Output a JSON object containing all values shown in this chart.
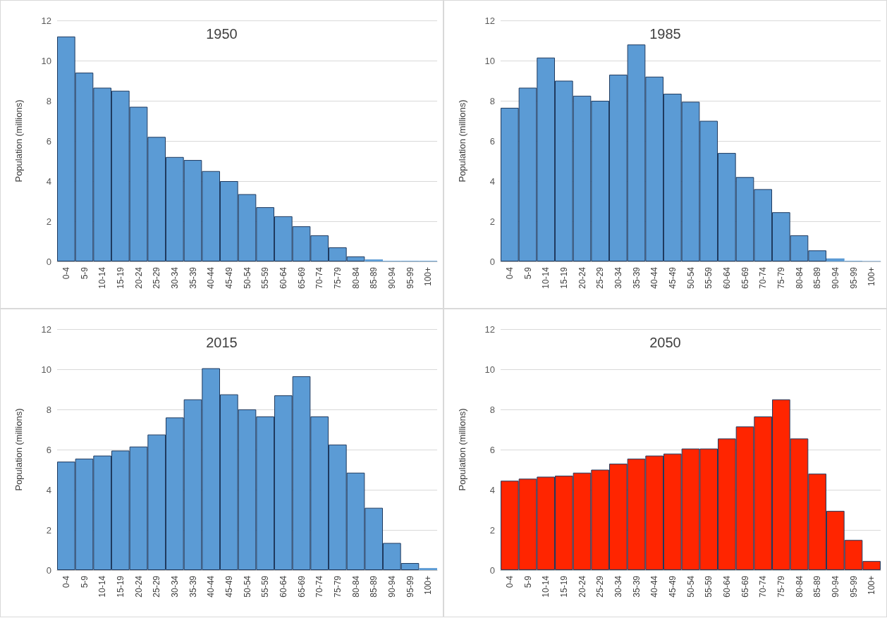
{
  "chart_data": [
    {
      "type": "bar",
      "title": "1950",
      "ylabel": "Population (millions)",
      "categories": [
        "0-4",
        "5-9",
        "10-14",
        "15-19",
        "20-24",
        "25-29",
        "30-34",
        "35-39",
        "40-44",
        "45-49",
        "50-54",
        "55-59",
        "60-64",
        "65-69",
        "70-74",
        "75-79",
        "80-84",
        "85-89",
        "90-94",
        "95-99",
        "100+"
      ],
      "values": [
        11.2,
        9.4,
        8.65,
        8.5,
        7.7,
        6.2,
        5.2,
        5.05,
        4.5,
        4.0,
        3.35,
        2.7,
        2.25,
        1.75,
        1.3,
        0.7,
        0.25,
        0.1,
        0.03,
        0.03,
        0.03
      ],
      "color": "#5b9bd5",
      "ylim": [
        0,
        12
      ],
      "yticks": [
        0,
        2,
        4,
        6,
        8,
        10,
        12
      ],
      "grid": "y"
    },
    {
      "type": "bar",
      "title": "1985",
      "ylabel": "Population (millions)",
      "categories": [
        "0-4",
        "5-9",
        "10-14",
        "15-19",
        "20-24",
        "25-29",
        "30-34",
        "35-39",
        "40-44",
        "45-49",
        "50-54",
        "55-59",
        "60-64",
        "65-69",
        "70-74",
        "75-79",
        "80-84",
        "85-89",
        "90-94",
        "95-99",
        "100+"
      ],
      "values": [
        7.65,
        8.65,
        10.15,
        9.0,
        8.25,
        8.0,
        9.3,
        10.8,
        9.2,
        8.35,
        7.95,
        7.0,
        5.4,
        4.2,
        3.6,
        2.45,
        1.3,
        0.55,
        0.15,
        0.03,
        0.02
      ],
      "color": "#5b9bd5",
      "ylim": [
        0,
        12
      ],
      "yticks": [
        0,
        2,
        4,
        6,
        8,
        10,
        12
      ],
      "grid": "y"
    },
    {
      "type": "bar",
      "title": "2015",
      "ylabel": "Population (millions)",
      "categories": [
        "0-4",
        "5-9",
        "10-14",
        "15-19",
        "20-24",
        "25-29",
        "30-34",
        "35-39",
        "40-44",
        "45-49",
        "50-54",
        "55-59",
        "60-64",
        "65-69",
        "70-74",
        "75-79",
        "80-84",
        "85-89",
        "90-94",
        "95-99",
        "100+"
      ],
      "values": [
        5.4,
        5.55,
        5.7,
        5.95,
        6.15,
        6.75,
        7.6,
        8.5,
        10.05,
        8.75,
        8.0,
        7.65,
        8.7,
        9.65,
        7.65,
        6.25,
        4.85,
        3.1,
        1.35,
        0.35,
        0.1
      ],
      "color": "#5b9bd5",
      "ylim": [
        0,
        12
      ],
      "yticks": [
        0,
        2,
        4,
        6,
        8,
        10,
        12
      ],
      "grid": "y"
    },
    {
      "type": "bar",
      "title": "2050",
      "ylabel": "Population (millions)",
      "categories": [
        "0-4",
        "5-9",
        "10-14",
        "15-19",
        "20-24",
        "25-29",
        "30-34",
        "35-39",
        "40-44",
        "45-49",
        "50-54",
        "55-59",
        "60-64",
        "65-69",
        "70-74",
        "75-79",
        "80-84",
        "85-89",
        "90-94",
        "95-99",
        "100+"
      ],
      "values": [
        4.45,
        4.55,
        4.65,
        4.7,
        4.85,
        5.0,
        5.3,
        5.55,
        5.7,
        5.8,
        6.05,
        6.05,
        6.55,
        7.15,
        7.65,
        8.5,
        6.55,
        4.8,
        2.95,
        1.5,
        0.45
      ],
      "color": "#ff2500",
      "ylim": [
        0,
        12
      ],
      "yticks": [
        0,
        2,
        4,
        6,
        8,
        10,
        12
      ],
      "grid": "y"
    }
  ]
}
